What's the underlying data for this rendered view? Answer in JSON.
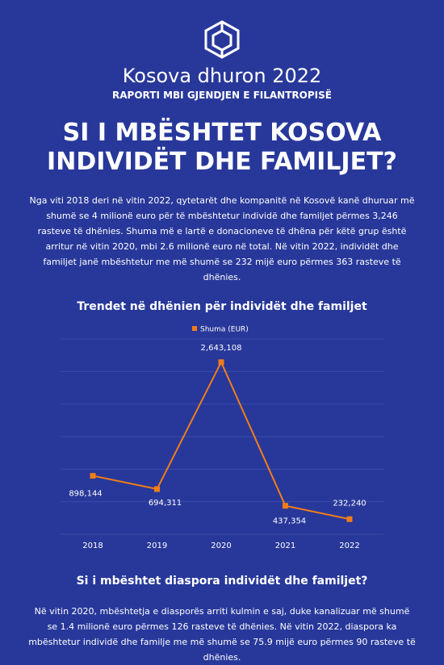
{
  "header": {
    "brand": "Kosova dhuron 2022",
    "subtitle": "RAPORTI MBI GJENDJEN E FILANTROPISË",
    "heading": [
      "SI I MBËSHTET KOSOVA",
      "INDIVIDËT DHE FAMILJET?"
    ]
  },
  "intro": "Nga viti 2018 deri në vitin 2022, qytetarët dhe kompanitë në Kosovë kanë dhuruar më shumë se 4 milionë euro për të mbështetur individë dhe familjet përmes 3,246 rasteve të dhënies. Shuma më e lartë e donacioneve të dhëna për këtë grup është arritur në vitin 2020, mbi 2.6 milionë euro në total. Në vitin 2022, individët dhe familjet janë mbështetur me më shumë se 232 mijë euro përmes 363 rasteve të dhënies.",
  "chart_data": {
    "type": "line",
    "title": "Trendet në dhënien për individët dhe familjet",
    "categories": [
      "2018",
      "2019",
      "2020",
      "2021",
      "2022"
    ],
    "series": [
      {
        "name": "Shuma (EUR)",
        "color": "#f07d1a",
        "values": [
          898144,
          694311,
          2643108,
          437354,
          232240
        ],
        "value_labels": [
          "898,144",
          "694,311",
          "2,643,108",
          "437,354",
          "232,240"
        ]
      }
    ],
    "ylim": [
      0,
      3000000
    ],
    "yticks": [
      0,
      500000,
      1000000,
      1500000,
      2000000,
      2500000,
      3000000
    ],
    "grid": true,
    "legend": "top"
  },
  "section": {
    "heading": "Si i mbështet diaspora individët dhe familjet?",
    "text": "Në vitin 2020, mbështetja e diasporës arriti kulmin e saj, duke kanalizuar më shumë se 1.4 milionë euro përmes 126 rasteve të dhënies. Në vitin 2022, diaspora ka mbështetur individë dhe familje me më shumë se 75.9 mijë euro përmes 90 rasteve të dhënies."
  }
}
